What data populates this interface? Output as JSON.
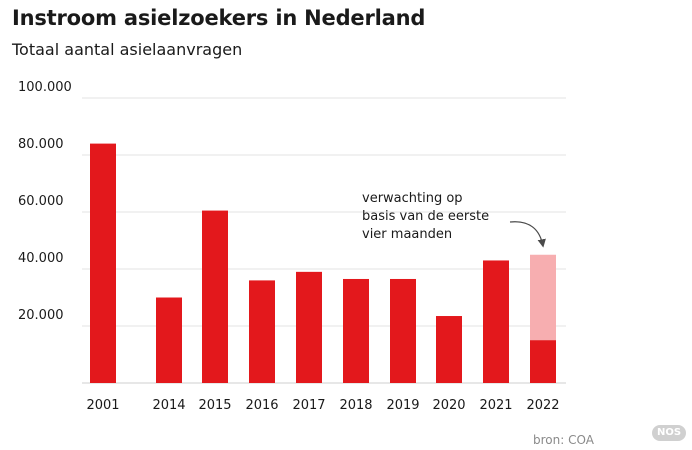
{
  "header": {
    "title": "Instroom asielzoekers in Nederland",
    "subtitle": "Totaal aantal asielaanvragen"
  },
  "footer": {
    "source": "bron: COA",
    "badge": "NOS"
  },
  "colors": {
    "bar": "#e3181c",
    "projection": "#f7aeb0",
    "grid": "#e3e3e3"
  },
  "chart_data": {
    "type": "bar",
    "title": "Instroom asielzoekers in Nederland",
    "subtitle": "Totaal aantal asielaanvragen",
    "categories": [
      "2001",
      "2014",
      "2015",
      "2016",
      "2017",
      "2018",
      "2019",
      "2020",
      "2021",
      "2022"
    ],
    "values": [
      84000,
      30000,
      60500,
      36000,
      39000,
      36500,
      36500,
      23500,
      43000,
      15000
    ],
    "projection": {
      "category": "2022",
      "total": 45000,
      "annotation": [
        "verwachting op",
        "basis van de eerste",
        "vier maanden"
      ]
    },
    "ylim": [
      0,
      100000
    ],
    "yticks": [
      20000,
      40000,
      60000,
      80000,
      100000
    ],
    "ytick_labels": [
      "20.000",
      "40.000",
      "60.000",
      "80.000",
      "100.000"
    ],
    "grid": true
  }
}
